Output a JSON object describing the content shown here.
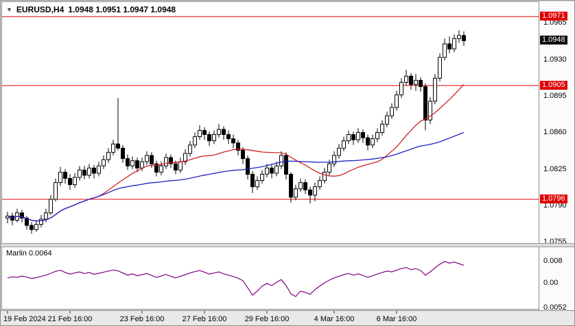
{
  "header": {
    "symbol_marker": "▼",
    "symbol": "EURUSD,H4",
    "ohlc": "1.0948 1.0951 1.0947 1.0948"
  },
  "indicator_panel": {
    "label": "Marlin 0.0064"
  },
  "colors": {
    "background": "#e9e9e9",
    "chart_background": "#ffffff",
    "panel_border": "#8c8c8c",
    "level_line": "#e60000",
    "badge_red": "#e00000",
    "badge_dark": "#0a0a0a",
    "candle_up": "#ffffff",
    "candle_down": "#000000",
    "text": "#000000"
  },
  "chart_data": {
    "type": "candlestick",
    "symbol": "EURUSD",
    "timeframe": "H4",
    "title": "EURUSD,H4",
    "current_price": 1.0948,
    "h_lines": [
      1.0971,
      1.0905,
      1.0796
    ],
    "level_badges": [
      {
        "value": 1.0971,
        "style": "red"
      },
      {
        "value": 1.0948,
        "style": "dark"
      },
      {
        "value": 1.0905,
        "style": "red"
      },
      {
        "value": 1.0796,
        "style": "red"
      }
    ],
    "y_axis": {
      "min": 1.0754,
      "max": 1.0985,
      "ticks": [
        1.0965,
        1.093,
        1.0895,
        1.086,
        1.0825,
        1.079,
        1.0755
      ]
    },
    "x_ticks": [
      {
        "label": "19 Feb 2024",
        "index": 0
      },
      {
        "label": "21 Feb 16:00",
        "index": 13
      },
      {
        "label": "23 Feb 16:00",
        "index": 28
      },
      {
        "label": "27 Feb 16:00",
        "index": 41
      },
      {
        "label": "29 Feb 16:00",
        "index": 54
      },
      {
        "label": "4 Mar 16:00",
        "index": 68
      },
      {
        "label": "6 Mar 16:00",
        "index": 81
      }
    ],
    "overlays": [
      {
        "name": "fast-ma",
        "period": 20,
        "color": "#d02020"
      },
      {
        "name": "slow-ma",
        "period": 50,
        "color": "#2020c0"
      }
    ],
    "candles": [
      [
        1.0778,
        1.0784,
        1.0773,
        1.078
      ],
      [
        1.078,
        1.0783,
        1.0771,
        1.0776
      ],
      [
        1.0776,
        1.0787,
        1.0774,
        1.0783
      ],
      [
        1.0783,
        1.0786,
        1.0774,
        1.0778
      ],
      [
        1.0778,
        1.078,
        1.0767,
        1.0771
      ],
      [
        1.0771,
        1.0774,
        1.0763,
        1.0767
      ],
      [
        1.0767,
        1.0776,
        1.0765,
        1.0772
      ],
      [
        1.0772,
        1.0781,
        1.0769,
        1.0777
      ],
      [
        1.0777,
        1.0787,
        1.0774,
        1.0783
      ],
      [
        1.0783,
        1.08,
        1.0781,
        1.0796
      ],
      [
        1.0796,
        1.0816,
        1.0794,
        1.0812
      ],
      [
        1.0812,
        1.0827,
        1.0809,
        1.0822
      ],
      [
        1.0822,
        1.0825,
        1.0811,
        1.0816
      ],
      [
        1.0816,
        1.082,
        1.0805,
        1.081
      ],
      [
        1.081,
        1.0821,
        1.0807,
        1.0817
      ],
      [
        1.0817,
        1.0828,
        1.0814,
        1.0824
      ],
      [
        1.0824,
        1.0828,
        1.0815,
        1.0819
      ],
      [
        1.0819,
        1.083,
        1.0816,
        1.0826
      ],
      [
        1.0826,
        1.0829,
        1.0816,
        1.0821
      ],
      [
        1.0821,
        1.0832,
        1.0818,
        1.0828
      ],
      [
        1.0828,
        1.0838,
        1.0825,
        1.0834
      ],
      [
        1.0834,
        1.0845,
        1.0831,
        1.0841
      ],
      [
        1.0841,
        1.0853,
        1.0838,
        1.0849
      ],
      [
        1.0849,
        1.0893,
        1.0843,
        1.0845
      ],
      [
        1.0845,
        1.0848,
        1.0831,
        1.0835
      ],
      [
        1.0835,
        1.0839,
        1.0824,
        1.0828
      ],
      [
        1.0828,
        1.0837,
        1.0825,
        1.0833
      ],
      [
        1.0833,
        1.0836,
        1.0822,
        1.0826
      ],
      [
        1.0826,
        1.0836,
        1.0823,
        1.0832
      ],
      [
        1.0832,
        1.0842,
        1.0829,
        1.0838
      ],
      [
        1.0838,
        1.0841,
        1.0826,
        1.083
      ],
      [
        1.083,
        1.0833,
        1.0818,
        1.0822
      ],
      [
        1.0822,
        1.0832,
        1.0819,
        1.0828
      ],
      [
        1.0828,
        1.084,
        1.0825,
        1.0836
      ],
      [
        1.0836,
        1.0839,
        1.0826,
        1.083
      ],
      [
        1.083,
        1.0833,
        1.082,
        1.0824
      ],
      [
        1.0824,
        1.0836,
        1.0821,
        1.0832
      ],
      [
        1.0832,
        1.0844,
        1.0829,
        1.084
      ],
      [
        1.084,
        1.0852,
        1.0837,
        1.0848
      ],
      [
        1.0848,
        1.086,
        1.0845,
        1.0856
      ],
      [
        1.0856,
        1.0867,
        1.0853,
        1.0862
      ],
      [
        1.0862,
        1.0865,
        1.0853,
        1.0858
      ],
      [
        1.0858,
        1.0861,
        1.0847,
        1.0852
      ],
      [
        1.0852,
        1.0862,
        1.0849,
        1.0858
      ],
      [
        1.0858,
        1.0868,
        1.0855,
        1.0863
      ],
      [
        1.0863,
        1.0866,
        1.0853,
        1.0858
      ],
      [
        1.0858,
        1.0862,
        1.0849,
        1.0854
      ],
      [
        1.0854,
        1.0858,
        1.0845,
        1.085
      ],
      [
        1.085,
        1.0853,
        1.0838,
        1.0843
      ],
      [
        1.0843,
        1.0846,
        1.083,
        1.0835
      ],
      [
        1.0835,
        1.0838,
        1.0815,
        1.082
      ],
      [
        1.082,
        1.0823,
        1.0802,
        1.0808
      ],
      [
        1.0808,
        1.0818,
        1.0805,
        1.0814
      ],
      [
        1.0814,
        1.0824,
        1.0811,
        1.082
      ],
      [
        1.082,
        1.083,
        1.0817,
        1.0826
      ],
      [
        1.0826,
        1.0829,
        1.0816,
        1.0821
      ],
      [
        1.0821,
        1.0832,
        1.0818,
        1.0828
      ],
      [
        1.0828,
        1.0842,
        1.0825,
        1.0838
      ],
      [
        1.0838,
        1.0841,
        1.0815,
        1.082
      ],
      [
        1.082,
        1.0822,
        1.0793,
        1.0798
      ],
      [
        1.0798,
        1.081,
        1.0795,
        1.0806
      ],
      [
        1.0806,
        1.0816,
        1.0803,
        1.0812
      ],
      [
        1.0812,
        1.0815,
        1.0801,
        1.0805
      ],
      [
        1.0805,
        1.0808,
        1.0792,
        1.08
      ],
      [
        1.08,
        1.0812,
        1.0794,
        1.0808
      ],
      [
        1.0808,
        1.0818,
        1.0805,
        1.0814
      ],
      [
        1.0814,
        1.0826,
        1.0811,
        1.0822
      ],
      [
        1.0822,
        1.0834,
        1.0819,
        1.083
      ],
      [
        1.083,
        1.0842,
        1.0827,
        1.0838
      ],
      [
        1.0838,
        1.0849,
        1.0835,
        1.0845
      ],
      [
        1.0845,
        1.0856,
        1.0842,
        1.0852
      ],
      [
        1.0852,
        1.0862,
        1.0849,
        1.0858
      ],
      [
        1.0858,
        1.0861,
        1.0848,
        1.0853
      ],
      [
        1.0853,
        1.0864,
        1.085,
        1.086
      ],
      [
        1.086,
        1.0863,
        1.085,
        1.0855
      ],
      [
        1.0855,
        1.0858,
        1.0843,
        1.0848
      ],
      [
        1.0848,
        1.0858,
        1.0845,
        1.0854
      ],
      [
        1.0854,
        1.0864,
        1.0851,
        1.086
      ],
      [
        1.086,
        1.0872,
        1.0857,
        1.0868
      ],
      [
        1.0868,
        1.088,
        1.0865,
        1.0876
      ],
      [
        1.0876,
        1.0888,
        1.0873,
        1.0884
      ],
      [
        1.0884,
        1.09,
        1.0881,
        1.0896
      ],
      [
        1.0896,
        1.0912,
        1.0893,
        1.0908
      ],
      [
        1.0908,
        1.092,
        1.0905,
        1.0914
      ],
      [
        1.0914,
        1.0917,
        1.0901,
        1.0906
      ],
      [
        1.0906,
        1.0916,
        1.09,
        1.091
      ],
      [
        1.091,
        1.0913,
        1.0899,
        1.0904
      ],
      [
        1.0904,
        1.0907,
        1.0862,
        1.0872
      ],
      [
        1.0872,
        1.0894,
        1.0868,
        1.089
      ],
      [
        1.089,
        1.0916,
        1.0887,
        1.0912
      ],
      [
        1.0912,
        1.0936,
        1.0909,
        1.0932
      ],
      [
        1.0932,
        1.095,
        1.0929,
        1.0945
      ],
      [
        1.0945,
        1.0952,
        1.0936,
        1.094
      ],
      [
        1.094,
        1.0954,
        1.0937,
        1.095
      ],
      [
        1.095,
        1.0958,
        1.0946,
        1.0953
      ],
      [
        1.0953,
        1.0957,
        1.0943,
        1.0948
      ]
    ],
    "indicator": {
      "name": "Marlin",
      "current_value": 0.0064,
      "color": "#800080",
      "axis_labels": [
        "0.008",
        "0.00",
        "0.0052"
      ],
      "values": [
        0.0018,
        0.0022,
        0.002,
        0.0025,
        0.0021,
        0.0016,
        0.0019,
        0.0024,
        0.0028,
        0.0035,
        0.0042,
        0.0046,
        0.0038,
        0.0032,
        0.0036,
        0.004,
        0.0034,
        0.0038,
        0.0031,
        0.0035,
        0.0039,
        0.0043,
        0.0047,
        0.0044,
        0.0036,
        0.0028,
        0.0033,
        0.0026,
        0.003,
        0.0034,
        0.0027,
        0.002,
        0.0025,
        0.0031,
        0.0024,
        0.0018,
        0.0024,
        0.003,
        0.0036,
        0.0041,
        0.0045,
        0.0039,
        0.0032,
        0.0036,
        0.004,
        0.0033,
        0.0028,
        0.0023,
        0.0017,
        0.0008,
        -0.0018,
        -0.0045,
        -0.003,
        -0.0012,
        -0.0002,
        -0.001,
        0.0002,
        0.0012,
        -0.001,
        -0.004,
        -0.005,
        -0.003,
        -0.0035,
        -0.0042,
        -0.0025,
        -0.0012,
        0.0,
        0.001,
        0.0018,
        0.0024,
        0.003,
        0.0034,
        0.0028,
        0.0033,
        0.0027,
        0.002,
        0.0026,
        0.0032,
        0.0038,
        0.0043,
        0.004,
        0.0046,
        0.0052,
        0.0056,
        0.0048,
        0.0052,
        0.0045,
        0.0028,
        0.004,
        0.0055,
        0.0068,
        0.0078,
        0.0072,
        0.0076,
        0.007,
        0.0064
      ]
    }
  }
}
